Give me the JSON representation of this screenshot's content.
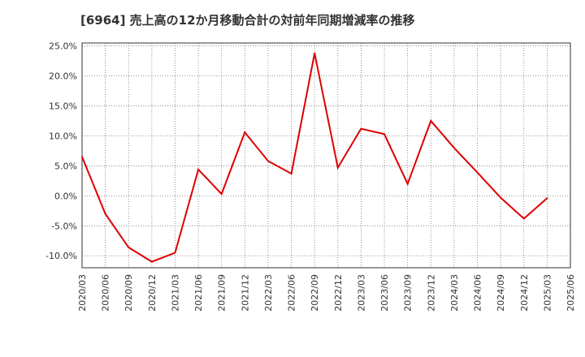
{
  "chart_data": {
    "type": "line",
    "title": "[6964]  売上高の12か月移動合計の対前年同期増減率の推移",
    "xlabel": "",
    "ylabel": "",
    "ylim": [
      -12,
      25.5
    ],
    "yticks": [
      25,
      20,
      15,
      10,
      5,
      0,
      -5,
      -10
    ],
    "ytick_labels": [
      "25.0%",
      "20.0%",
      "15.0%",
      "10.0%",
      "5.0%",
      "0.0%",
      "-5.0%",
      "-10.0%"
    ],
    "categories": [
      "2020/03",
      "2020/06",
      "2020/09",
      "2020/12",
      "2021/03",
      "2021/06",
      "2021/09",
      "2021/12",
      "2022/03",
      "2022/06",
      "2022/09",
      "2022/12",
      "2023/03",
      "2023/06",
      "2023/09",
      "2023/12",
      "2024/03",
      "2024/06",
      "2024/09",
      "2024/12",
      "2025/03",
      "2025/06"
    ],
    "series": [
      {
        "name": "増減率",
        "color": "#dd0000",
        "values": [
          6.5,
          -3.0,
          -8.6,
          -11.0,
          -9.5,
          4.4,
          0.3,
          10.6,
          5.8,
          3.7,
          23.8,
          4.7,
          11.2,
          10.3,
          2.0,
          12.5,
          8.0,
          3.9,
          -0.3,
          -3.8,
          -0.4,
          null
        ]
      }
    ],
    "grid": true,
    "legend": "none"
  }
}
